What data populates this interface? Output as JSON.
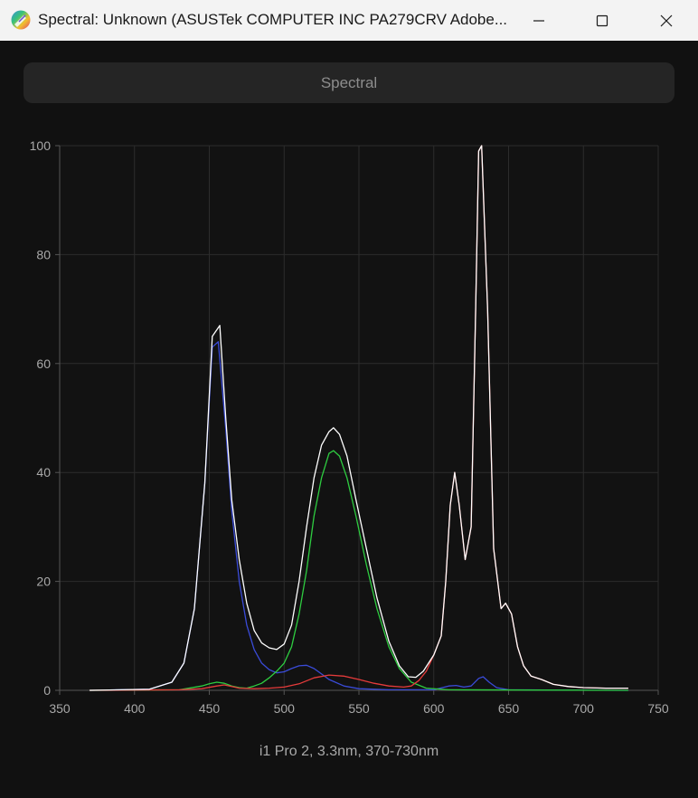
{
  "window": {
    "title": "Spectral: Unknown (ASUSTek COMPUTER INC PA279CRV Adobe...",
    "minimize_icon": "minimize-icon",
    "maximize_icon": "maximize-icon",
    "close_icon": "close-icon"
  },
  "header": {
    "label": "Spectral"
  },
  "caption": "i1 Pro 2, 3.3nm, 370-730nm",
  "chart_data": {
    "type": "line",
    "title": "",
    "xlabel": "",
    "ylabel": "",
    "xlim": [
      350,
      750
    ],
    "ylim": [
      0,
      100
    ],
    "x_ticks": [
      350,
      400,
      450,
      500,
      550,
      600,
      650,
      700,
      750
    ],
    "y_ticks": [
      0,
      20,
      40,
      60,
      80,
      100
    ],
    "grid": true,
    "legend": "none",
    "series": [
      {
        "color": "#ffffff",
        "points": [
          [
            370,
            0
          ],
          [
            410,
            0.2
          ],
          [
            425,
            1.5
          ],
          [
            433,
            5
          ],
          [
            440,
            15
          ],
          [
            447,
            38
          ],
          [
            452,
            65
          ],
          [
            457,
            67
          ],
          [
            461,
            50
          ],
          [
            465,
            35
          ],
          [
            470,
            24
          ],
          [
            475,
            16
          ],
          [
            480,
            11
          ],
          [
            485,
            8.7
          ],
          [
            490,
            7.8
          ],
          [
            495,
            7.5
          ],
          [
            500,
            8.5
          ],
          [
            505,
            12
          ],
          [
            510,
            20
          ],
          [
            515,
            30
          ],
          [
            520,
            39
          ],
          [
            525,
            45
          ],
          [
            530,
            47.5
          ],
          [
            533,
            48.2
          ],
          [
            537,
            47
          ],
          [
            542,
            43
          ],
          [
            548,
            35
          ],
          [
            555,
            26
          ],
          [
            562,
            17
          ],
          [
            570,
            9
          ],
          [
            577,
            4.5
          ],
          [
            583,
            2.5
          ],
          [
            588,
            2.4
          ],
          [
            593,
            3.5
          ],
          [
            600,
            6.5
          ],
          [
            605,
            10
          ],
          [
            608,
            20
          ],
          [
            611,
            34
          ],
          [
            614,
            40
          ],
          [
            617,
            34
          ],
          [
            621,
            24
          ],
          [
            625,
            30
          ],
          [
            628,
            70
          ],
          [
            630,
            99
          ],
          [
            632,
            100
          ],
          [
            636,
            70
          ],
          [
            640,
            26
          ],
          [
            645,
            15
          ],
          [
            648,
            16
          ],
          [
            652,
            14
          ],
          [
            656,
            8
          ],
          [
            660,
            4.5
          ],
          [
            665,
            2.6
          ],
          [
            672,
            2
          ],
          [
            680,
            1.1
          ],
          [
            690,
            0.7
          ],
          [
            700,
            0.5
          ],
          [
            715,
            0.4
          ],
          [
            730,
            0.4
          ]
        ]
      },
      {
        "color": "#3a4bd8",
        "points": [
          [
            370,
            0
          ],
          [
            410,
            0.2
          ],
          [
            425,
            1.5
          ],
          [
            433,
            5
          ],
          [
            440,
            15
          ],
          [
            447,
            38
          ],
          [
            452,
            63
          ],
          [
            456,
            64
          ],
          [
            461,
            48
          ],
          [
            465,
            33
          ],
          [
            470,
            20
          ],
          [
            475,
            12
          ],
          [
            480,
            7.5
          ],
          [
            485,
            5
          ],
          [
            490,
            3.8
          ],
          [
            495,
            3.2
          ],
          [
            500,
            3.4
          ],
          [
            505,
            4
          ],
          [
            510,
            4.5
          ],
          [
            515,
            4.6
          ],
          [
            520,
            4
          ],
          [
            525,
            3
          ],
          [
            530,
            2
          ],
          [
            540,
            0.8
          ],
          [
            550,
            0.3
          ],
          [
            570,
            0.1
          ],
          [
            600,
            0.1
          ],
          [
            610,
            0.8
          ],
          [
            615,
            0.9
          ],
          [
            620,
            0.6
          ],
          [
            625,
            0.8
          ],
          [
            630,
            2.2
          ],
          [
            633,
            2.5
          ],
          [
            637,
            1.5
          ],
          [
            642,
            0.5
          ],
          [
            650,
            0.1
          ],
          [
            730,
            0
          ]
        ]
      },
      {
        "color": "#2ecc40",
        "points": [
          [
            370,
            0
          ],
          [
            430,
            0.1
          ],
          [
            445,
            0.8
          ],
          [
            450,
            1.2
          ],
          [
            455,
            1.5
          ],
          [
            460,
            1.3
          ],
          [
            465,
            0.8
          ],
          [
            470,
            0.5
          ],
          [
            475,
            0.4
          ],
          [
            480,
            0.8
          ],
          [
            485,
            1.3
          ],
          [
            490,
            2.3
          ],
          [
            495,
            3.5
          ],
          [
            500,
            5
          ],
          [
            505,
            8
          ],
          [
            510,
            14
          ],
          [
            515,
            22
          ],
          [
            520,
            32
          ],
          [
            525,
            39
          ],
          [
            530,
            43.5
          ],
          [
            533,
            44
          ],
          [
            537,
            43
          ],
          [
            542,
            39
          ],
          [
            548,
            32
          ],
          [
            555,
            23
          ],
          [
            562,
            15
          ],
          [
            570,
            8
          ],
          [
            577,
            4
          ],
          [
            585,
            1.5
          ],
          [
            595,
            0.4
          ],
          [
            610,
            0.1
          ],
          [
            730,
            0
          ]
        ]
      },
      {
        "color": "#e53b3b",
        "points": [
          [
            370,
            0
          ],
          [
            430,
            0.1
          ],
          [
            445,
            0.3
          ],
          [
            455,
            0.8
          ],
          [
            460,
            1
          ],
          [
            465,
            0.7
          ],
          [
            470,
            0.4
          ],
          [
            480,
            0.3
          ],
          [
            490,
            0.4
          ],
          [
            500,
            0.6
          ],
          [
            510,
            1.2
          ],
          [
            520,
            2.3
          ],
          [
            530,
            2.8
          ],
          [
            540,
            2.6
          ],
          [
            550,
            2
          ],
          [
            560,
            1.3
          ],
          [
            570,
            0.8
          ],
          [
            580,
            0.6
          ],
          [
            585,
            0.8
          ],
          [
            590,
            1.8
          ],
          [
            595,
            3.5
          ],
          [
            600,
            6.5
          ],
          [
            605,
            10
          ],
          [
            608,
            20
          ],
          [
            611,
            34
          ],
          [
            614,
            40
          ],
          [
            617,
            34
          ],
          [
            621,
            24
          ],
          [
            625,
            30
          ],
          [
            628,
            70
          ],
          [
            630,
            99
          ],
          [
            632,
            100
          ],
          [
            636,
            70
          ],
          [
            640,
            26
          ],
          [
            645,
            15
          ],
          [
            648,
            16
          ],
          [
            652,
            14
          ],
          [
            656,
            8
          ],
          [
            660,
            4.5
          ],
          [
            665,
            2.6
          ],
          [
            672,
            2
          ],
          [
            680,
            1.1
          ],
          [
            690,
            0.7
          ],
          [
            700,
            0.5
          ],
          [
            715,
            0.4
          ],
          [
            730,
            0.4
          ]
        ]
      }
    ]
  }
}
